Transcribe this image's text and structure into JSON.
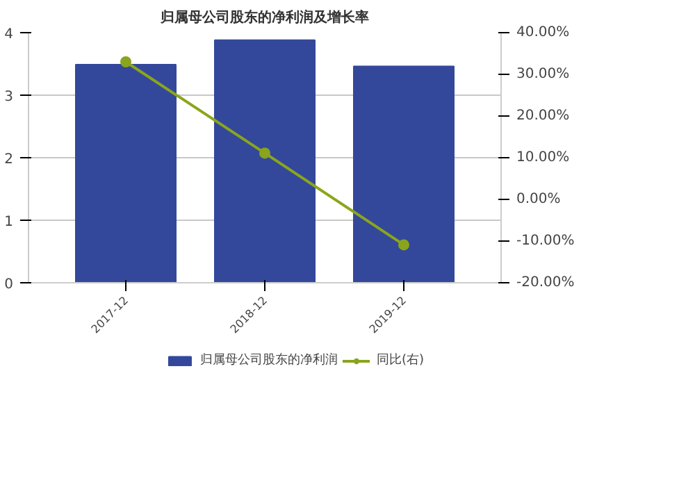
{
  "chart_data": {
    "type": "bar",
    "title": "归属母公司股东的净利润及增长率",
    "categories": [
      "2017-12",
      "2018-12",
      "2019-12"
    ],
    "series": [
      {
        "name": "归属母公司股东的净利润",
        "color": "#33489a",
        "values": [
          3.49,
          3.88,
          3.46
        ]
      },
      {
        "name": "同比(右)",
        "type": "line",
        "axis": "y2",
        "color": "#8aa51c",
        "values": [
          33.0,
          11.1,
          -10.9
        ]
      }
    ],
    "ylim": [
      0,
      4
    ],
    "yticks": [
      0,
      1,
      2,
      3,
      4
    ],
    "y2lim": [
      -20,
      40
    ],
    "y2ticks": [
      {
        "value": -20,
        "label": "-20.00%"
      },
      {
        "value": -10,
        "label": "-10.00%"
      },
      {
        "value": 0,
        "label": "0.00%"
      },
      {
        "value": 10,
        "label": "10.00%"
      },
      {
        "value": 20,
        "label": "20.00%"
      },
      {
        "value": 30,
        "label": "30.00%"
      },
      {
        "value": 40,
        "label": "40.00%"
      }
    ],
    "grid": "y",
    "legend": "bottom",
    "marker": "circle"
  }
}
